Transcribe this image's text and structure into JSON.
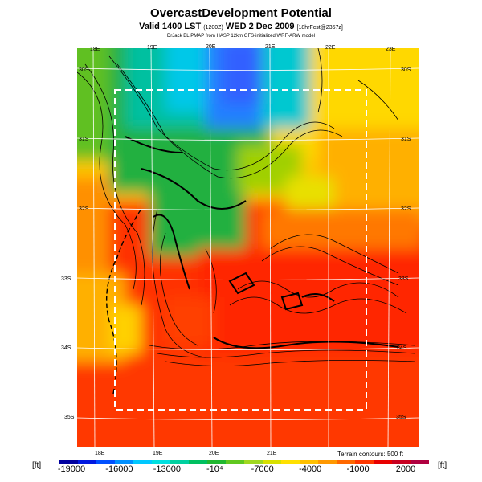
{
  "header": {
    "title": "OvercastDevelopment Potential",
    "subtitle_main": "Valid 1400 LST",
    "subtitle_code": "(1200Z)",
    "subtitle_date": "WED 2 Dec 2009",
    "subtitle_fcst": "[18hrFcst@2357z]",
    "credit": "DrJack BLIPMAP from HASP 12km GFS-initialized WRF-ARW model"
  },
  "map": {
    "lon_labels_top": [
      "18E",
      "19E",
      "20E",
      "21E",
      "22E",
      "23E"
    ],
    "lon_labels_bottom": [
      "18E",
      "19E",
      "20E",
      "21E"
    ],
    "lat_labels_left": [
      "30S",
      "31S",
      "32S",
      "33S",
      "34S",
      "35S"
    ],
    "lat_labels_right": [
      "30S",
      "31S",
      "32S",
      "33S",
      "34S",
      "35S"
    ],
    "terrain_note": "Terrain contours: 500 ft"
  },
  "colorbar": {
    "unit_left": "[ft]",
    "unit_right": "[ft]",
    "tick_labels": [
      "-19000",
      "-16000",
      "-13000",
      "-10⁴",
      "-7000",
      "-4000",
      "-1000",
      "2000"
    ],
    "colors": [
      "#0000a0",
      "#0018e0",
      "#0050ff",
      "#0090ff",
      "#00c8ff",
      "#00e0e0",
      "#00d0a0",
      "#00c060",
      "#20b830",
      "#60c820",
      "#a0d820",
      "#d8e000",
      "#ffe000",
      "#ffc000",
      "#ff9800",
      "#ff6800",
      "#ff3800",
      "#e80000",
      "#c80020",
      "#b00040"
    ]
  },
  "map_colors": {
    "blue": "#2878ff",
    "cyan": "#00c8e8",
    "teal": "#00c090",
    "green": "#20b040",
    "lightgreen": "#80c820",
    "yellow": "#e8e000",
    "orange": "#ff9000",
    "darkorange": "#ff6000",
    "red": "#ff2800",
    "deepred": "#e81000"
  }
}
